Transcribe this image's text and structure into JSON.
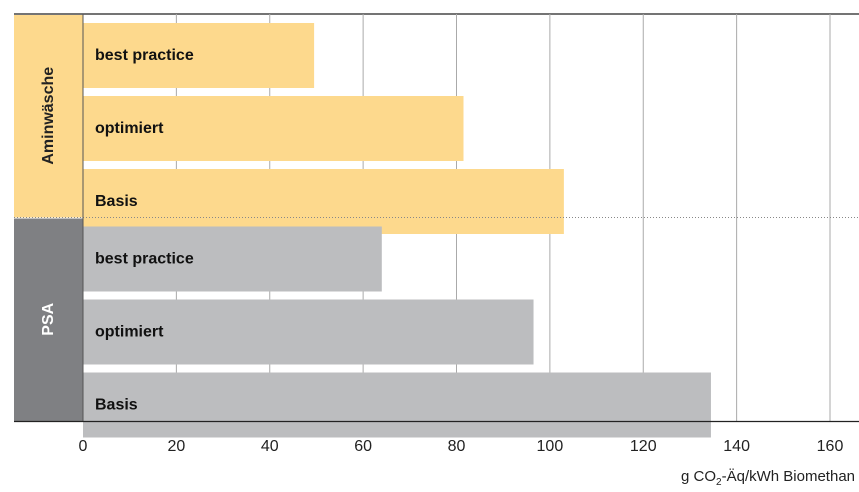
{
  "chart_data": {
    "type": "bar",
    "orientation": "horizontal",
    "groups": [
      {
        "name": "Aminwäsche",
        "color": "#fdd98d",
        "label_bg": "#fdd98d",
        "label_color": "#222222",
        "categories": [
          "best practice",
          "optimiert",
          "Basis"
        ],
        "values": [
          49.5,
          81.5,
          103
        ]
      },
      {
        "name": "PSA",
        "color": "#bcbdbf",
        "label_bg": "#7f8083",
        "label_color": "#ffffff",
        "categories": [
          "best practice",
          "optimiert",
          "Basis"
        ],
        "values": [
          64,
          96.5,
          134.5
        ]
      }
    ],
    "xlim": [
      0,
      160
    ],
    "xticks": [
      "0",
      "20",
      "40",
      "60",
      "80",
      "100",
      "120",
      "140",
      "160"
    ],
    "grid": true,
    "xlabel": {
      "prefix": "g CO",
      "subscript": "2",
      "suffix": "-Äq/kWh Biomethan"
    }
  }
}
